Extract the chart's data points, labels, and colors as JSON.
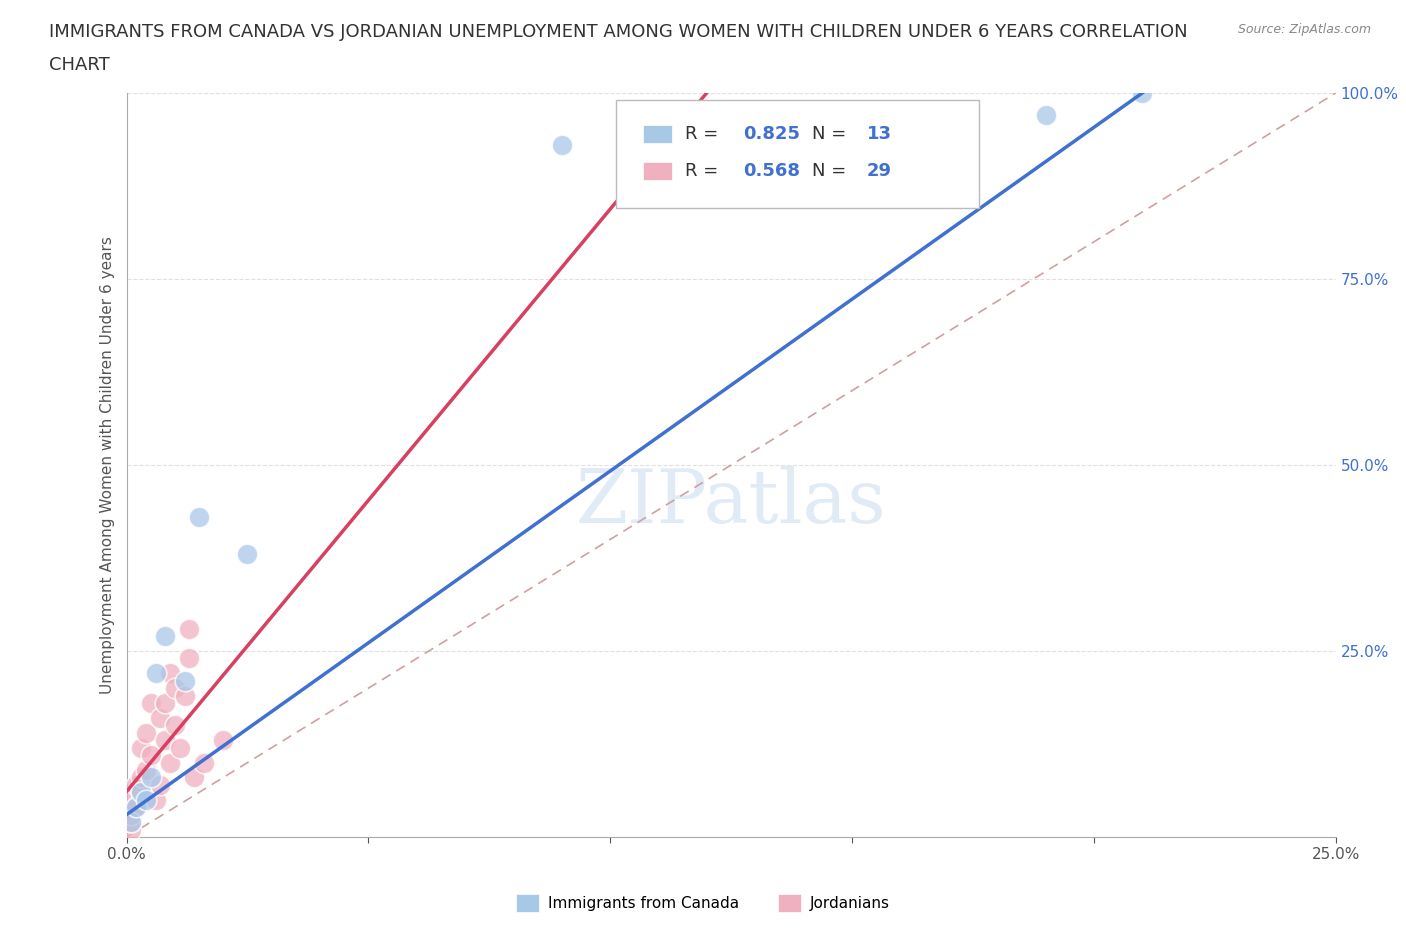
{
  "title_line1": "IMMIGRANTS FROM CANADA VS JORDANIAN UNEMPLOYMENT AMONG WOMEN WITH CHILDREN UNDER 6 YEARS CORRELATION",
  "title_line2": "CHART",
  "source": "Source: ZipAtlas.com",
  "ylabel": "Unemployment Among Women with Children Under 6 years",
  "watermark": "ZIPatlas",
  "legend_label1": "Immigrants from Canada",
  "legend_label2": "Jordanians",
  "R1": 0.825,
  "N1": 13,
  "R2": 0.568,
  "N2": 29,
  "xlim": [
    0,
    0.25
  ],
  "ylim": [
    0,
    1.0
  ],
  "xticks": [
    0.0,
    0.25
  ],
  "yticks": [
    0.0,
    0.25,
    0.5,
    0.75,
    1.0
  ],
  "xtick_labels": [
    "0.0%",
    "25.0%"
  ],
  "ytick_labels": [
    "",
    "25.0%",
    "50.0%",
    "75.0%",
    "100.0%"
  ],
  "blue_color": "#a8c8e8",
  "pink_color": "#f0b0c0",
  "blue_line_color": "#4070d0",
  "pink_line_color": "#d84060",
  "dash_line_color": "#d0a0a0",
  "blue_x": [
    0.001,
    0.002,
    0.003,
    0.004,
    0.005,
    0.006,
    0.008,
    0.012,
    0.015,
    0.025,
    0.19,
    0.21,
    0.09
  ],
  "blue_y": [
    0.02,
    0.04,
    0.06,
    0.05,
    0.08,
    0.22,
    0.27,
    0.21,
    0.43,
    0.38,
    0.97,
    1.0,
    0.93
  ],
  "pink_x": [
    0.001,
    0.001,
    0.001,
    0.001,
    0.002,
    0.002,
    0.003,
    0.003,
    0.003,
    0.004,
    0.004,
    0.005,
    0.005,
    0.006,
    0.007,
    0.007,
    0.008,
    0.008,
    0.009,
    0.009,
    0.01,
    0.01,
    0.011,
    0.012,
    0.013,
    0.013,
    0.014,
    0.016,
    0.02
  ],
  "pink_y": [
    0.01,
    0.02,
    0.03,
    0.05,
    0.04,
    0.07,
    0.06,
    0.08,
    0.12,
    0.09,
    0.14,
    0.11,
    0.18,
    0.05,
    0.07,
    0.16,
    0.13,
    0.18,
    0.1,
    0.22,
    0.15,
    0.2,
    0.12,
    0.19,
    0.24,
    0.28,
    0.08,
    0.1,
    0.13
  ],
  "title_fontsize": 13,
  "axis_label_fontsize": 11,
  "tick_fontsize": 11,
  "background_color": "#ffffff",
  "grid_color": "#e0e0e0"
}
